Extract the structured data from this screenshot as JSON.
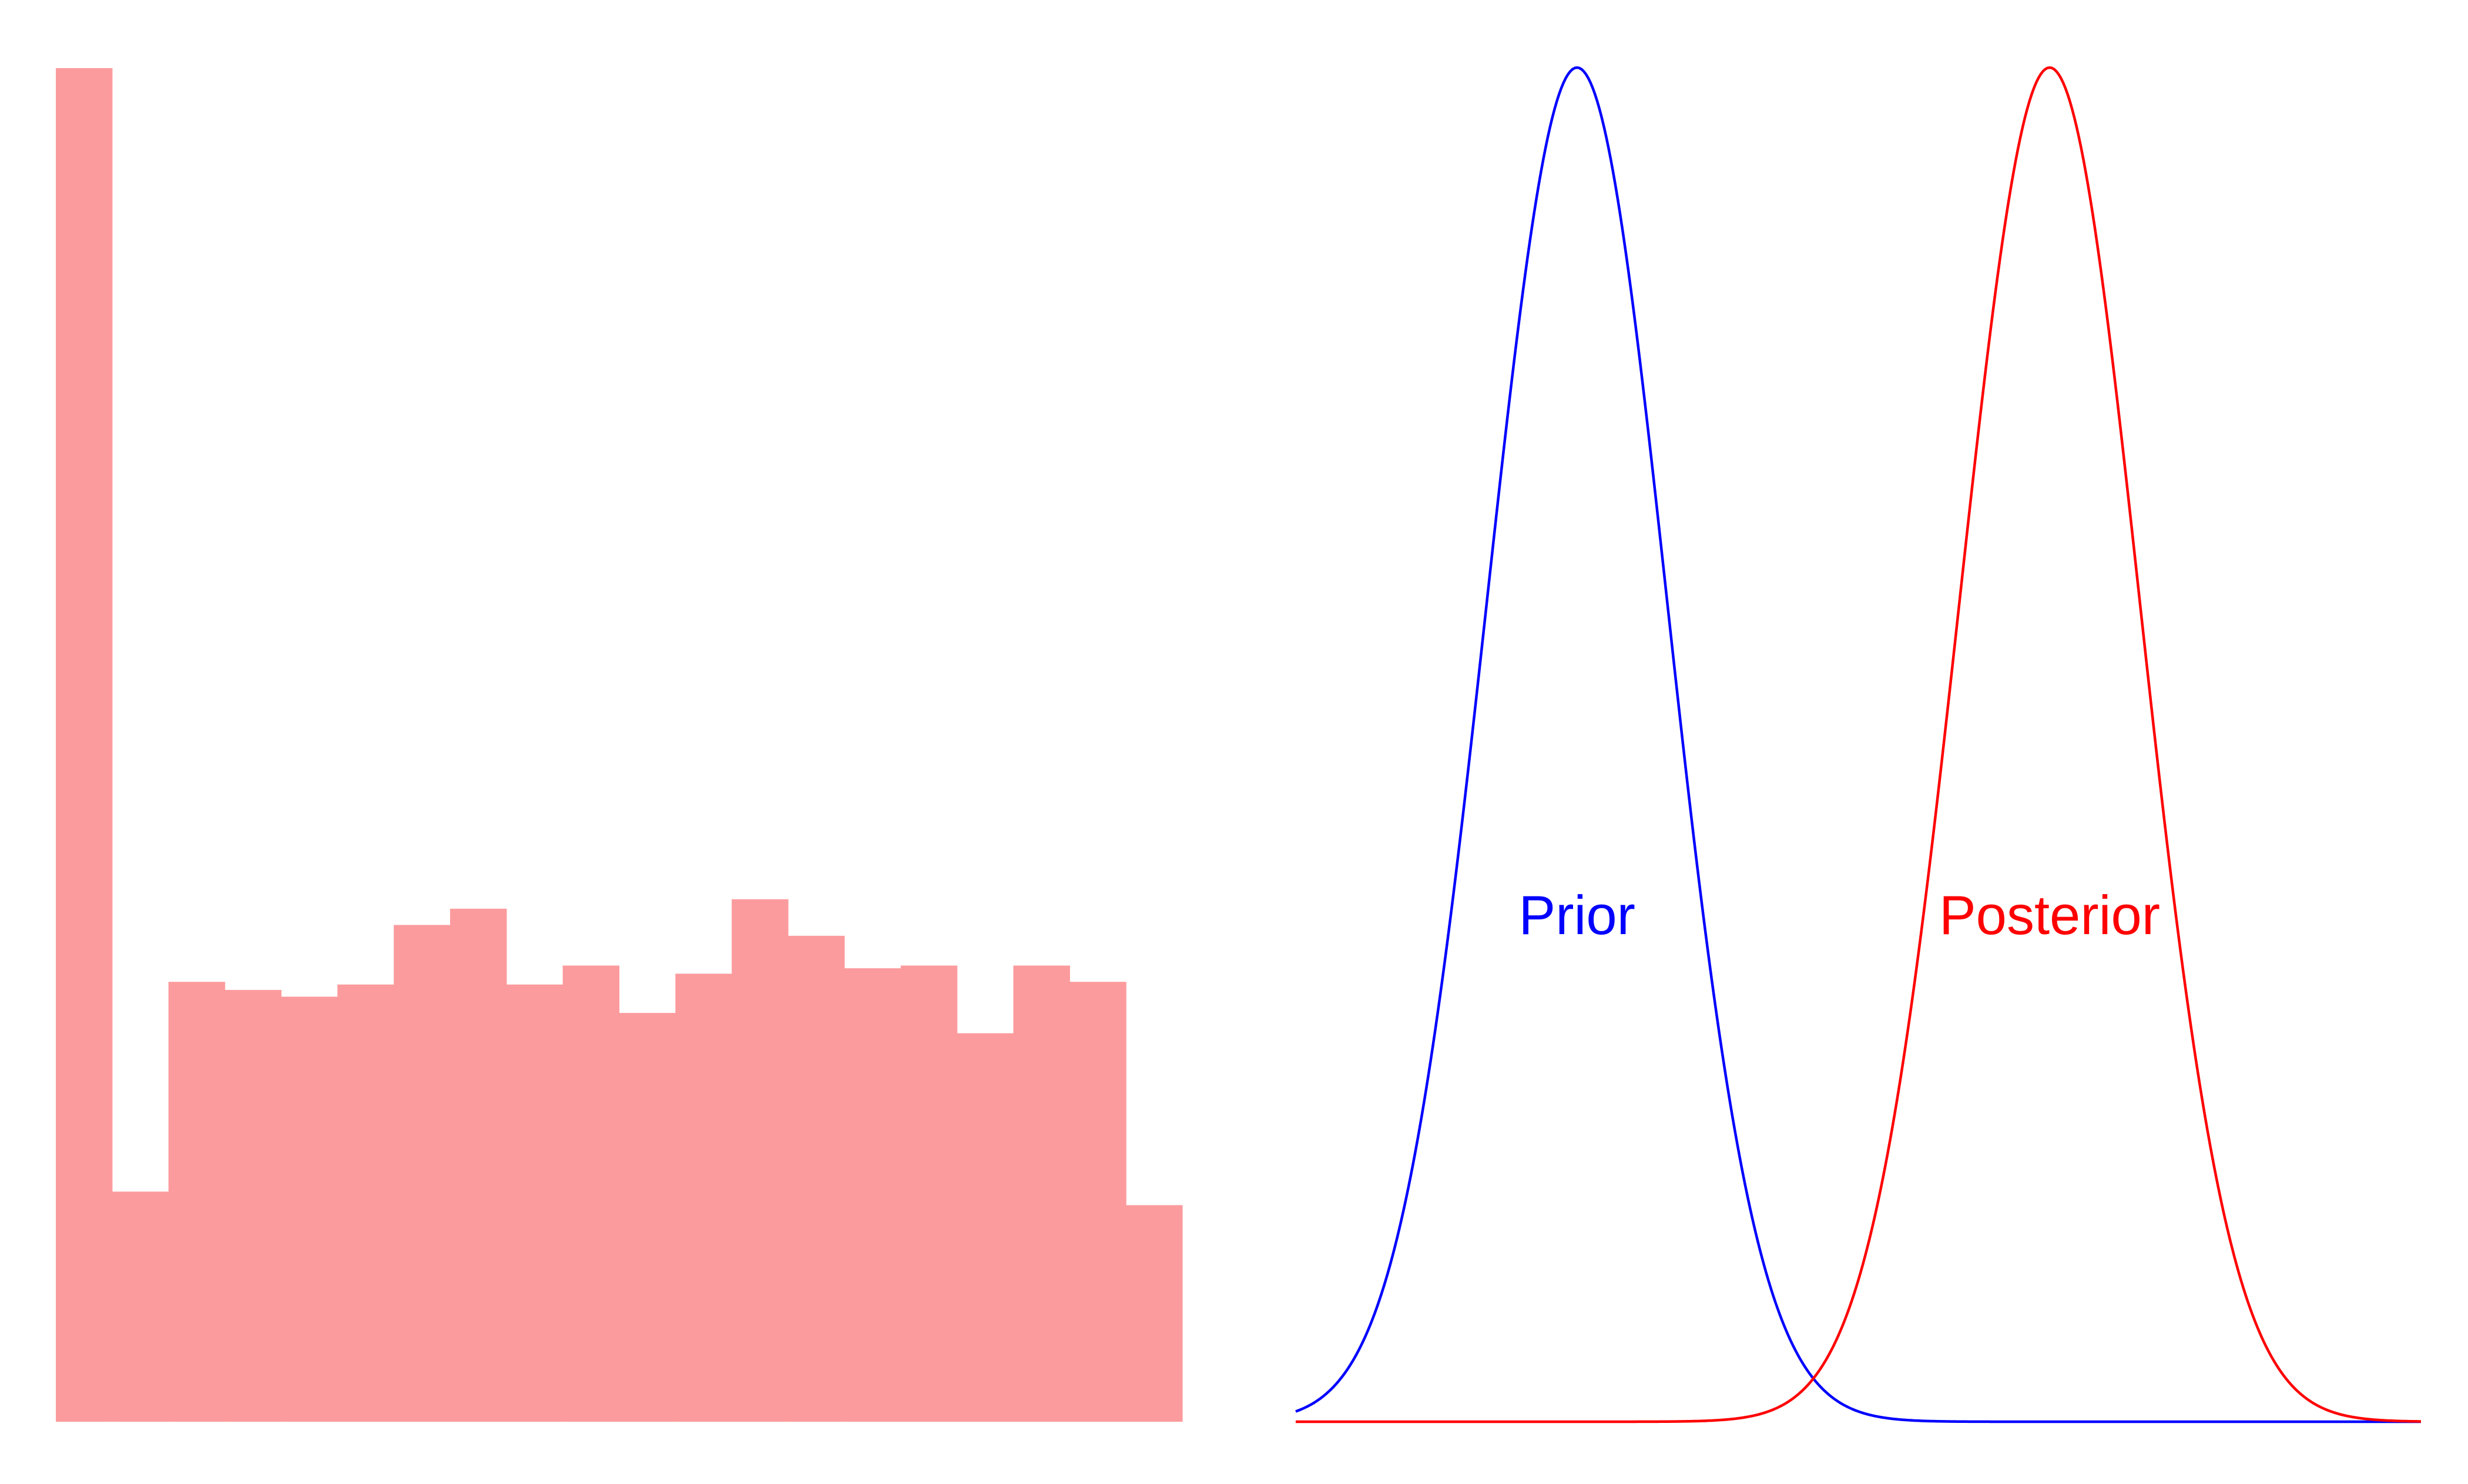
{
  "chart_data": [
    {
      "type": "bar",
      "title": "",
      "xlabel": "",
      "ylabel": "",
      "axes_visible": false,
      "grid": false,
      "bar_color": "#fc9b9d",
      "bins": 20,
      "values": [
        100,
        17,
        32.5,
        31.9,
        31.4,
        32.3,
        36.7,
        37.9,
        32.3,
        33.7,
        30.2,
        33.1,
        38.6,
        35.9,
        33.5,
        33.7,
        28.7,
        33.7,
        32.5,
        16
      ]
    },
    {
      "type": "line",
      "title": "",
      "xlabel": "",
      "ylabel": "",
      "axes_visible": false,
      "grid": false,
      "xlim": [
        0,
        10
      ],
      "ylim": [
        0,
        1
      ],
      "series": [
        {
          "name": "Prior",
          "color": "#0000ff",
          "distribution": "normal",
          "mean": 2.5,
          "sd": 0.8,
          "peak_density": 1.0
        },
        {
          "name": "Posterior",
          "color": "#ff0000",
          "distribution": "normal",
          "mean": 6.7,
          "sd": 0.8,
          "peak_density": 1.0
        }
      ]
    }
  ]
}
